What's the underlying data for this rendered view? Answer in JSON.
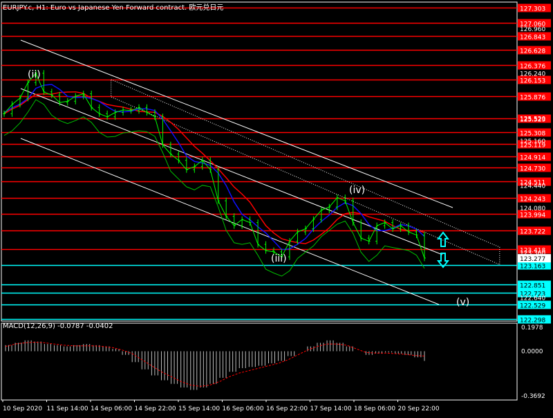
{
  "window": {
    "title": "EURJPY.c, H1:  Euro vs Japanese Yen Forward contract. 欧元兑日元"
  },
  "colors": {
    "background": "#000000",
    "frame": "#ffffff",
    "red_level": "#ff0000",
    "cyan_level": "#00ffff",
    "ma_red": "#ff0000",
    "ma_blue": "#1010ff",
    "ma_green": "#00c000",
    "price_bars": "#00ff00",
    "channel": "#ffffff",
    "macd_hist": "#c0c0c0",
    "macd_signal": "#ff0000"
  },
  "chart_data": [
    {
      "type": "candlestick",
      "instrument": "EURJPY.c",
      "timeframe": "H1",
      "price_axis_labels": [
        "126.960",
        "126.240",
        "125.520",
        "125.160",
        "124.440",
        "124.080",
        "123.360",
        "122.640"
      ],
      "red_levels": [
        "127.303",
        "127.060",
        "126.843",
        "126.628",
        "126.376",
        "126.153",
        "125.876",
        "125.523",
        "125.308",
        "125.119",
        "124.914",
        "124.730",
        "124.511",
        "124.243",
        "123.994",
        "123.722",
        "123.418"
      ],
      "cyan_levels": [
        "123.163",
        "122.851",
        "122.723",
        "122.529",
        "122.298"
      ],
      "current_price": "123.277",
      "time_labels": [
        "10 Sep 2020",
        "11 Sep 14:00",
        "14 Sep 06:00",
        "14 Sep 22:00",
        "15 Sep 14:00",
        "16 Sep 06:00",
        "16 Sep 22:00",
        "17 Sep 14:00",
        "18 Sep 06:00",
        "20 Sep 22:00"
      ],
      "wave_labels": [
        "(ii)",
        "(iii)",
        "(iv)",
        "(v)"
      ],
      "series": [
        {
          "name": "",
          "values": [
            125.6,
            125.75,
            125.85,
            126.1,
            126.25,
            125.95,
            125.9,
            125.78,
            125.8,
            125.88,
            125.92,
            125.7,
            125.6,
            125.55,
            125.62,
            125.66,
            125.65,
            125.7,
            125.62,
            125.55,
            125.1,
            124.95,
            124.85,
            124.7,
            124.75,
            124.85,
            124.7,
            124.2,
            123.95,
            123.8,
            123.9,
            123.85,
            123.5,
            123.4,
            123.38,
            123.3,
            123.55,
            123.7,
            123.75,
            123.9,
            124.05,
            124.1,
            124.25,
            124.2,
            123.85,
            123.6,
            123.55,
            123.8,
            123.85,
            123.75,
            123.8,
            123.7,
            123.65,
            123.28
          ]
        }
      ]
    },
    {
      "type": "line",
      "indicator": "MACD(12,26,9)",
      "readout": "MACD(12,26,9) -0.0787 -0.0402",
      "axis_labels": [
        "0.1978",
        "0.0000",
        "-0.3692"
      ],
      "histogram": [
        0.05,
        0.07,
        0.09,
        0.08,
        0.06,
        0.05,
        0.04,
        0.05,
        0.06,
        0.05,
        0.04,
        0.02,
        -0.03,
        -0.09,
        -0.15,
        -0.2,
        -0.24,
        -0.27,
        -0.3,
        -0.32,
        -0.3,
        -0.27,
        -0.22,
        -0.17,
        -0.14,
        -0.13,
        -0.12,
        -0.1,
        -0.08,
        -0.04,
        0.0,
        0.04,
        0.07,
        0.09,
        0.07,
        0.04,
        0.0,
        -0.03,
        -0.02,
        -0.01,
        -0.02,
        -0.03,
        -0.05,
        -0.08
      ],
      "signal": [
        0.04,
        0.06,
        0.07,
        0.075,
        0.07,
        0.06,
        0.05,
        0.045,
        0.045,
        0.045,
        0.04,
        0.03,
        0.01,
        -0.02,
        -0.07,
        -0.12,
        -0.17,
        -0.21,
        -0.25,
        -0.28,
        -0.29,
        -0.28,
        -0.25,
        -0.21,
        -0.18,
        -0.16,
        -0.14,
        -0.12,
        -0.1,
        -0.07,
        -0.03,
        0.01,
        0.04,
        0.06,
        0.06,
        0.05,
        0.02,
        -0.01,
        -0.015,
        -0.015,
        -0.02,
        -0.025,
        -0.035,
        -0.04
      ],
      "ylim": [
        -0.3692,
        0.1978
      ]
    }
  ]
}
